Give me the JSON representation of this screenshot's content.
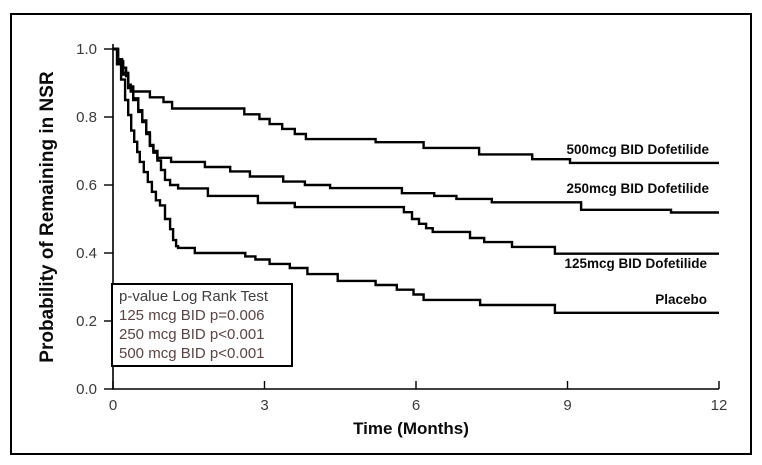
{
  "colors": {
    "curve": "#000000",
    "axis": "#000000",
    "tick_label": "#3a3a3a",
    "pbox_title_text": "#3f3f3f",
    "pbox_row_text": "#5a4444",
    "background": "#ffffff"
  },
  "chart_data": {
    "type": "line",
    "subtype": "kaplan-meier-step",
    "title": "",
    "xlabel": "Time (Months)",
    "ylabel": "Probability of Remaining in NSR",
    "xlim": [
      0,
      12
    ],
    "ylim": [
      0.0,
      1.0
    ],
    "xticks": [
      0,
      3,
      6,
      9,
      12
    ],
    "yticks": [
      1.0,
      0.8,
      0.6,
      0.4,
      0.2,
      0.0
    ],
    "grid": false,
    "legend_position": "end-of-line-labels",
    "series": [
      {
        "name": "500mcg BID Dofetilide",
        "points": [
          [
            0,
            1.0
          ],
          [
            0.1,
            0.97
          ],
          [
            0.18,
            0.945
          ],
          [
            0.26,
            0.92
          ],
          [
            0.3,
            0.895
          ],
          [
            0.35,
            0.875
          ],
          [
            0.73,
            0.858
          ],
          [
            1.0,
            0.844
          ],
          [
            1.17,
            0.825
          ],
          [
            2.6,
            0.808
          ],
          [
            2.9,
            0.794
          ],
          [
            3.1,
            0.779
          ],
          [
            3.35,
            0.765
          ],
          [
            3.6,
            0.75
          ],
          [
            3.82,
            0.735
          ],
          [
            5.2,
            0.726
          ],
          [
            6.15,
            0.709
          ],
          [
            7.25,
            0.69
          ],
          [
            8.3,
            0.676
          ],
          [
            9.05,
            0.665
          ]
        ]
      },
      {
        "name": "250mcg BID Dofetilide",
        "points": [
          [
            0,
            1.0
          ],
          [
            0.1,
            0.965
          ],
          [
            0.2,
            0.93
          ],
          [
            0.3,
            0.89
          ],
          [
            0.4,
            0.855
          ],
          [
            0.5,
            0.82
          ],
          [
            0.58,
            0.79
          ],
          [
            0.66,
            0.755
          ],
          [
            0.73,
            0.718
          ],
          [
            0.8,
            0.7
          ],
          [
            0.88,
            0.68
          ],
          [
            1.15,
            0.668
          ],
          [
            1.82,
            0.653
          ],
          [
            2.32,
            0.64
          ],
          [
            2.71,
            0.625
          ],
          [
            3.37,
            0.61
          ],
          [
            3.8,
            0.6
          ],
          [
            4.3,
            0.591
          ],
          [
            5.72,
            0.576
          ],
          [
            6.36,
            0.568
          ],
          [
            6.8,
            0.559
          ],
          [
            7.5,
            0.549
          ],
          [
            9.27,
            0.527
          ],
          [
            11.05,
            0.519
          ]
        ]
      },
      {
        "name": "125mcg BID Dofetilide",
        "points": [
          [
            0,
            1.0
          ],
          [
            0.1,
            0.96
          ],
          [
            0.2,
            0.925
          ],
          [
            0.3,
            0.885
          ],
          [
            0.4,
            0.85
          ],
          [
            0.5,
            0.815
          ],
          [
            0.58,
            0.785
          ],
          [
            0.66,
            0.75
          ],
          [
            0.73,
            0.715
          ],
          [
            0.8,
            0.695
          ],
          [
            0.88,
            0.672
          ],
          [
            0.95,
            0.644
          ],
          [
            1.03,
            0.615
          ],
          [
            1.13,
            0.6
          ],
          [
            1.29,
            0.59
          ],
          [
            1.88,
            0.568
          ],
          [
            2.87,
            0.547
          ],
          [
            3.6,
            0.535
          ],
          [
            5.76,
            0.52
          ],
          [
            5.92,
            0.5
          ],
          [
            6.06,
            0.486
          ],
          [
            6.2,
            0.473
          ],
          [
            6.33,
            0.462
          ],
          [
            7.07,
            0.444
          ],
          [
            7.35,
            0.432
          ],
          [
            7.9,
            0.418
          ],
          [
            8.75,
            0.398
          ]
        ]
      },
      {
        "name": "Placebo",
        "points": [
          [
            0,
            1.0
          ],
          [
            0.08,
            0.955
          ],
          [
            0.16,
            0.91
          ],
          [
            0.24,
            0.85
          ],
          [
            0.3,
            0.806
          ],
          [
            0.36,
            0.76
          ],
          [
            0.42,
            0.727
          ],
          [
            0.48,
            0.697
          ],
          [
            0.53,
            0.668
          ],
          [
            0.61,
            0.638
          ],
          [
            0.69,
            0.609
          ],
          [
            0.77,
            0.58
          ],
          [
            0.85,
            0.555
          ],
          [
            0.93,
            0.54
          ],
          [
            1.03,
            0.5
          ],
          [
            1.13,
            0.47
          ],
          [
            1.19,
            0.438
          ],
          [
            1.25,
            0.42
          ],
          [
            1.29,
            0.415
          ],
          [
            1.62,
            0.4
          ],
          [
            2.62,
            0.39
          ],
          [
            2.82,
            0.381
          ],
          [
            3.1,
            0.368
          ],
          [
            3.5,
            0.356
          ],
          [
            3.85,
            0.338
          ],
          [
            4.45,
            0.318
          ],
          [
            5.2,
            0.306
          ],
          [
            5.62,
            0.292
          ],
          [
            5.95,
            0.278
          ],
          [
            6.15,
            0.262
          ],
          [
            7.27,
            0.247
          ],
          [
            8.75,
            0.224
          ]
        ]
      }
    ],
    "pvalue_box": {
      "title": "p-value Log Rank Test",
      "rows": [
        "125 mcg BID p=0.006",
        "250 mcg BID p<0.001",
        "500 mcg BID p<0.001"
      ]
    }
  }
}
